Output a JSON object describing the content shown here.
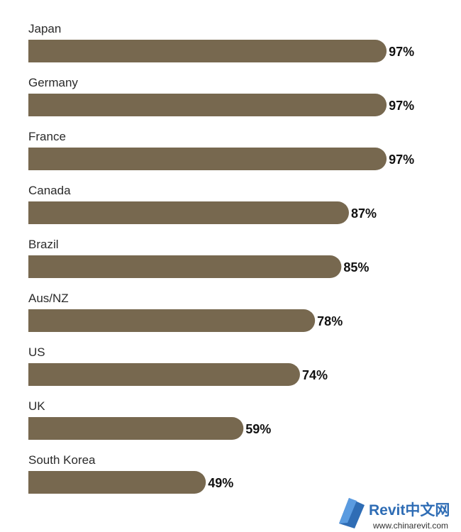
{
  "chart_data": {
    "type": "bar",
    "orientation": "horizontal",
    "categories": [
      "Japan",
      "Germany",
      "France",
      "Canada",
      "Brazil",
      "Aus/NZ",
      "US",
      "UK",
      "South Korea"
    ],
    "values": [
      97,
      97,
      97,
      87,
      85,
      78,
      74,
      59,
      49
    ],
    "value_labels": [
      "97%",
      "97%",
      "97%",
      "87%",
      "85%",
      "78%",
      "74%",
      "59%",
      "49%"
    ],
    "color": "#77684f"
  },
  "watermark": {
    "title": "Revit中文网",
    "url": "www.chinarevit.com"
  }
}
